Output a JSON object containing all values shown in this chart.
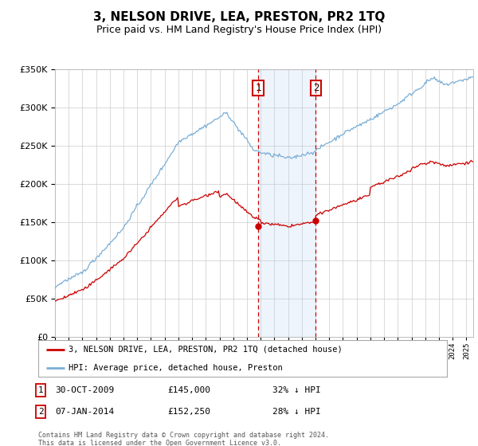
{
  "title": "3, NELSON DRIVE, LEA, PRESTON, PR2 1TQ",
  "subtitle": "Price paid vs. HM Land Registry's House Price Index (HPI)",
  "legend_label_red": "3, NELSON DRIVE, LEA, PRESTON, PR2 1TQ (detached house)",
  "legend_label_blue": "HPI: Average price, detached house, Preston",
  "footer": "Contains HM Land Registry data © Crown copyright and database right 2024.\nThis data is licensed under the Open Government Licence v3.0.",
  "table_rows": [
    {
      "num": "1",
      "date": "30-OCT-2009",
      "price": "£145,000",
      "hpi": "32% ↓ HPI"
    },
    {
      "num": "2",
      "date": "07-JAN-2014",
      "price": "£152,250",
      "hpi": "28% ↓ HPI"
    }
  ],
  "sale1_year": 2009.83,
  "sale2_year": 2014.02,
  "sale1_price": 145000,
  "sale2_price": 152250,
  "ylim": [
    0,
    350000
  ],
  "xlim_start": 1995,
  "xlim_end": 2025.5,
  "background_color": "#ffffff",
  "grid_color": "#cccccc",
  "red_color": "#cc0000",
  "blue_color": "#7aaed6",
  "shade_color": "#ddeeff",
  "title_fontsize": 11,
  "subtitle_fontsize": 9
}
